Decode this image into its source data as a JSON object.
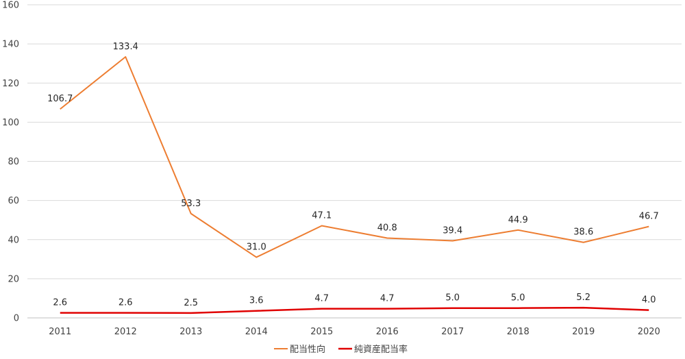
{
  "chart_data": {
    "type": "line",
    "categories": [
      "2011",
      "2012",
      "2013",
      "2014",
      "2015",
      "2016",
      "2017",
      "2018",
      "2019",
      "2020"
    ],
    "ylim": [
      0,
      160
    ],
    "yticks": [
      0,
      20,
      40,
      60,
      80,
      100,
      120,
      140,
      160
    ],
    "ytick_labels": [
      "0",
      "20",
      "40",
      "60",
      "80",
      "100",
      "120",
      "140",
      "160"
    ],
    "grid": true,
    "legend_position": "bottom",
    "series": [
      {
        "name": "配当性向",
        "color": "#ED7D31",
        "values": [
          106.7,
          133.4,
          53.3,
          31.0,
          47.1,
          40.8,
          39.4,
          44.9,
          38.6,
          46.7
        ],
        "labels": [
          "106.7",
          "133.4",
          "53.3",
          "31.0",
          "47.1",
          "40.8",
          "39.4",
          "44.9",
          "38.6",
          "46.7"
        ]
      },
      {
        "name": "純資産配当率",
        "color": "#E00000",
        "values": [
          2.6,
          2.6,
          2.5,
          3.6,
          4.7,
          4.7,
          5.0,
          5.0,
          5.2,
          4.0
        ],
        "labels": [
          "2.6",
          "2.6",
          "2.5",
          "3.6",
          "4.7",
          "4.7",
          "5.0",
          "5.0",
          "5.2",
          "4.0"
        ]
      }
    ]
  }
}
